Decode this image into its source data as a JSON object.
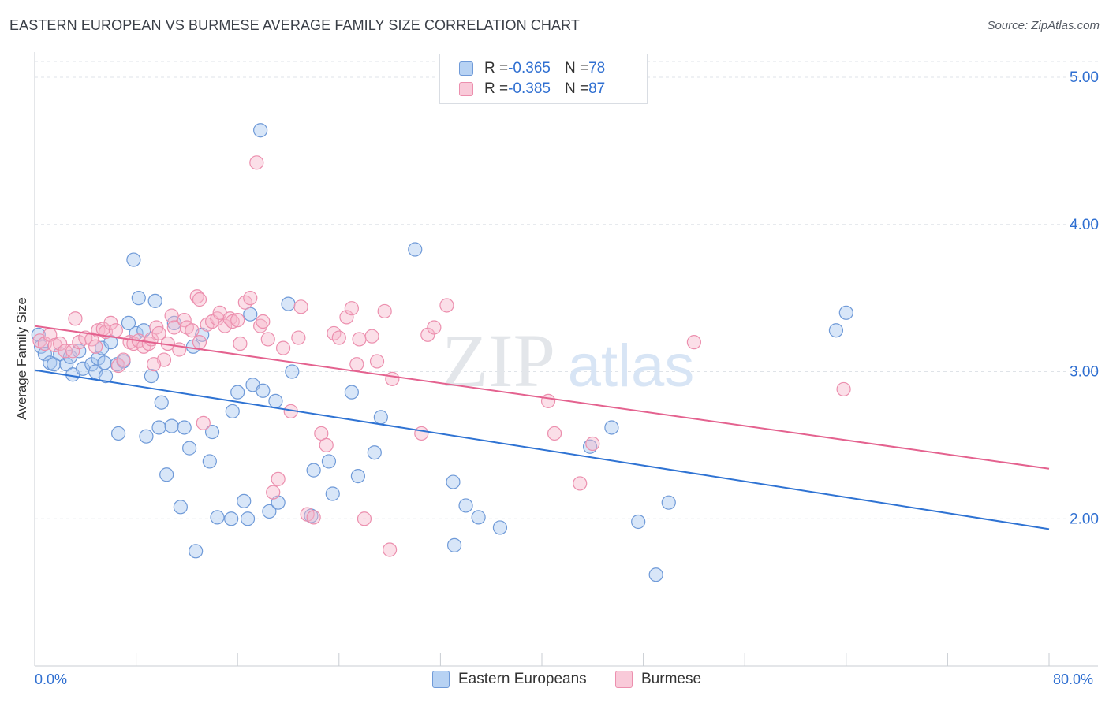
{
  "title": "EASTERN EUROPEAN VS BURMESE AVERAGE FAMILY SIZE CORRELATION CHART",
  "source": "Source: ZipAtlas.com",
  "watermark": {
    "zip": "ZIP",
    "atlas": "atlas"
  },
  "colors": {
    "blue_fill": "#a9c8ef",
    "blue_stroke": "#6f9ad8",
    "blue_line": "#2f73d3",
    "pink_fill": "#f6b9cc",
    "pink_stroke": "#ec8fae",
    "pink_line": "#e4628f",
    "accent_text": "#2f6fd1",
    "grid": "#dfe3e8"
  },
  "legend": {
    "rows": [
      {
        "r_label": "R = ",
        "r_value": "-0.365",
        "n_label": "N = ",
        "n_value": "78"
      },
      {
        "r_label": "R = ",
        "r_value": "-0.385",
        "n_label": "N = ",
        "n_value": "87"
      }
    ]
  },
  "bottom_legend": [
    "Eastern Europeans",
    "Burmese"
  ],
  "chart_data": {
    "type": "scatter",
    "title": "EASTERN EUROPEAN VS BURMESE AVERAGE FAMILY SIZE CORRELATION CHART",
    "xlabel": "",
    "ylabel": "Average Family Size",
    "xlim": [
      0,
      80
    ],
    "ylim": [
      1.0,
      5.15
    ],
    "x_tick_labels": [
      "0.0%",
      "80.0%"
    ],
    "y_ticks": [
      2.0,
      3.0,
      4.0,
      5.0
    ],
    "y_tick_labels": [
      "2.00",
      "3.00",
      "4.00",
      "5.00"
    ],
    "grid": "horizontal dashed",
    "legend_position": "top-center",
    "series": [
      {
        "name": "Eastern Europeans",
        "trend": {
          "x": [
            0,
            80
          ],
          "y": [
            3.01,
            1.93
          ]
        },
        "points": [
          [
            0.3,
            3.25
          ],
          [
            0.5,
            3.17
          ],
          [
            0.8,
            3.12
          ],
          [
            1.2,
            3.06
          ],
          [
            1.5,
            3.05
          ],
          [
            2.0,
            3.12
          ],
          [
            2.5,
            3.05
          ],
          [
            2.8,
            3.1
          ],
          [
            3.0,
            2.98
          ],
          [
            3.5,
            3.14
          ],
          [
            3.8,
            3.02
          ],
          [
            4.5,
            3.05
          ],
          [
            4.8,
            3.0
          ],
          [
            5.0,
            3.09
          ],
          [
            5.3,
            3.16
          ],
          [
            5.5,
            3.06
          ],
          [
            5.6,
            2.97
          ],
          [
            6.0,
            3.2
          ],
          [
            6.5,
            3.05
          ],
          [
            6.6,
            2.58
          ],
          [
            7.0,
            3.07
          ],
          [
            7.4,
            3.33
          ],
          [
            7.8,
            3.76
          ],
          [
            8.0,
            3.26
          ],
          [
            8.2,
            3.5
          ],
          [
            8.6,
            3.28
          ],
          [
            8.8,
            2.56
          ],
          [
            9.2,
            2.97
          ],
          [
            9.5,
            3.48
          ],
          [
            9.8,
            2.62
          ],
          [
            10.0,
            2.79
          ],
          [
            10.4,
            2.3
          ],
          [
            10.8,
            2.63
          ],
          [
            11.0,
            3.33
          ],
          [
            11.5,
            2.08
          ],
          [
            11.8,
            2.62
          ],
          [
            12.2,
            2.48
          ],
          [
            12.5,
            3.17
          ],
          [
            12.7,
            1.78
          ],
          [
            13.2,
            3.25
          ],
          [
            13.8,
            2.39
          ],
          [
            14.0,
            2.59
          ],
          [
            14.4,
            2.01
          ],
          [
            15.5,
            2.0
          ],
          [
            15.6,
            2.73
          ],
          [
            16.0,
            2.86
          ],
          [
            16.5,
            2.12
          ],
          [
            16.8,
            2.0
          ],
          [
            17.0,
            3.39
          ],
          [
            17.2,
            2.91
          ],
          [
            17.8,
            4.64
          ],
          [
            18.0,
            2.87
          ],
          [
            18.5,
            2.05
          ],
          [
            19.0,
            2.8
          ],
          [
            19.2,
            2.11
          ],
          [
            20.0,
            3.46
          ],
          [
            20.3,
            3.0
          ],
          [
            21.8,
            2.02
          ],
          [
            22.0,
            2.33
          ],
          [
            23.2,
            2.39
          ],
          [
            23.5,
            2.17
          ],
          [
            25.0,
            2.86
          ],
          [
            25.5,
            2.29
          ],
          [
            26.8,
            2.45
          ],
          [
            27.3,
            2.69
          ],
          [
            30.0,
            3.83
          ],
          [
            33.0,
            2.25
          ],
          [
            33.1,
            1.82
          ],
          [
            34.0,
            2.09
          ],
          [
            35.0,
            2.01
          ],
          [
            36.7,
            1.94
          ],
          [
            43.8,
            2.49
          ],
          [
            45.5,
            2.62
          ],
          [
            47.6,
            1.98
          ],
          [
            49.0,
            1.62
          ],
          [
            50.0,
            2.11
          ],
          [
            63.2,
            3.28
          ],
          [
            64.0,
            3.4
          ]
        ]
      },
      {
        "name": "Burmese",
        "trend": {
          "x": [
            0,
            80
          ],
          "y": [
            3.31,
            2.34
          ]
        },
        "points": [
          [
            0.4,
            3.21
          ],
          [
            0.8,
            3.19
          ],
          [
            1.2,
            3.25
          ],
          [
            1.6,
            3.18
          ],
          [
            2.0,
            3.19
          ],
          [
            2.4,
            3.14
          ],
          [
            3.0,
            3.14
          ],
          [
            3.2,
            3.36
          ],
          [
            3.5,
            3.2
          ],
          [
            4.0,
            3.23
          ],
          [
            4.5,
            3.22
          ],
          [
            4.8,
            3.17
          ],
          [
            5.0,
            3.28
          ],
          [
            5.4,
            3.29
          ],
          [
            5.6,
            3.27
          ],
          [
            6.0,
            3.33
          ],
          [
            6.4,
            3.28
          ],
          [
            6.6,
            3.04
          ],
          [
            7.0,
            3.08
          ],
          [
            7.5,
            3.2
          ],
          [
            7.8,
            3.19
          ],
          [
            8.2,
            3.21
          ],
          [
            8.6,
            3.17
          ],
          [
            9.0,
            3.19
          ],
          [
            9.2,
            3.22
          ],
          [
            9.6,
            3.3
          ],
          [
            9.8,
            3.26
          ],
          [
            10.2,
            3.08
          ],
          [
            10.5,
            3.19
          ],
          [
            10.8,
            3.38
          ],
          [
            11.0,
            3.3
          ],
          [
            11.4,
            3.15
          ],
          [
            11.8,
            3.35
          ],
          [
            12.0,
            3.3
          ],
          [
            12.4,
            3.28
          ],
          [
            12.8,
            3.51
          ],
          [
            13.0,
            3.49
          ],
          [
            13.3,
            2.65
          ],
          [
            13.6,
            3.32
          ],
          [
            14.0,
            3.34
          ],
          [
            14.4,
            3.36
          ],
          [
            14.6,
            3.4
          ],
          [
            15.0,
            3.31
          ],
          [
            15.4,
            3.36
          ],
          [
            15.6,
            3.34
          ],
          [
            16.0,
            3.35
          ],
          [
            16.2,
            3.19
          ],
          [
            16.6,
            3.47
          ],
          [
            17.0,
            3.5
          ],
          [
            17.5,
            4.42
          ],
          [
            17.8,
            3.31
          ],
          [
            18.0,
            3.34
          ],
          [
            18.4,
            3.22
          ],
          [
            18.8,
            2.18
          ],
          [
            19.2,
            2.27
          ],
          [
            19.6,
            3.16
          ],
          [
            20.2,
            2.73
          ],
          [
            21.0,
            3.44
          ],
          [
            21.5,
            2.03
          ],
          [
            22.0,
            2.01
          ],
          [
            22.6,
            2.58
          ],
          [
            23.0,
            2.5
          ],
          [
            23.6,
            3.26
          ],
          [
            24.0,
            3.23
          ],
          [
            24.6,
            3.37
          ],
          [
            25.0,
            3.43
          ],
          [
            25.4,
            3.05
          ],
          [
            25.6,
            3.22
          ],
          [
            26.0,
            2.0
          ],
          [
            26.6,
            3.24
          ],
          [
            27.0,
            3.07
          ],
          [
            27.6,
            3.41
          ],
          [
            28.0,
            1.79
          ],
          [
            28.2,
            2.95
          ],
          [
            30.5,
            2.58
          ],
          [
            31.0,
            3.25
          ],
          [
            31.5,
            3.3
          ],
          [
            40.5,
            2.8
          ],
          [
            41.0,
            2.58
          ],
          [
            43.0,
            2.24
          ],
          [
            44.0,
            2.51
          ],
          [
            52.0,
            3.2
          ],
          [
            63.8,
            2.88
          ],
          [
            32.5,
            3.45
          ],
          [
            13.0,
            3.2
          ],
          [
            9.4,
            3.05
          ],
          [
            20.8,
            3.23
          ]
        ]
      }
    ]
  }
}
